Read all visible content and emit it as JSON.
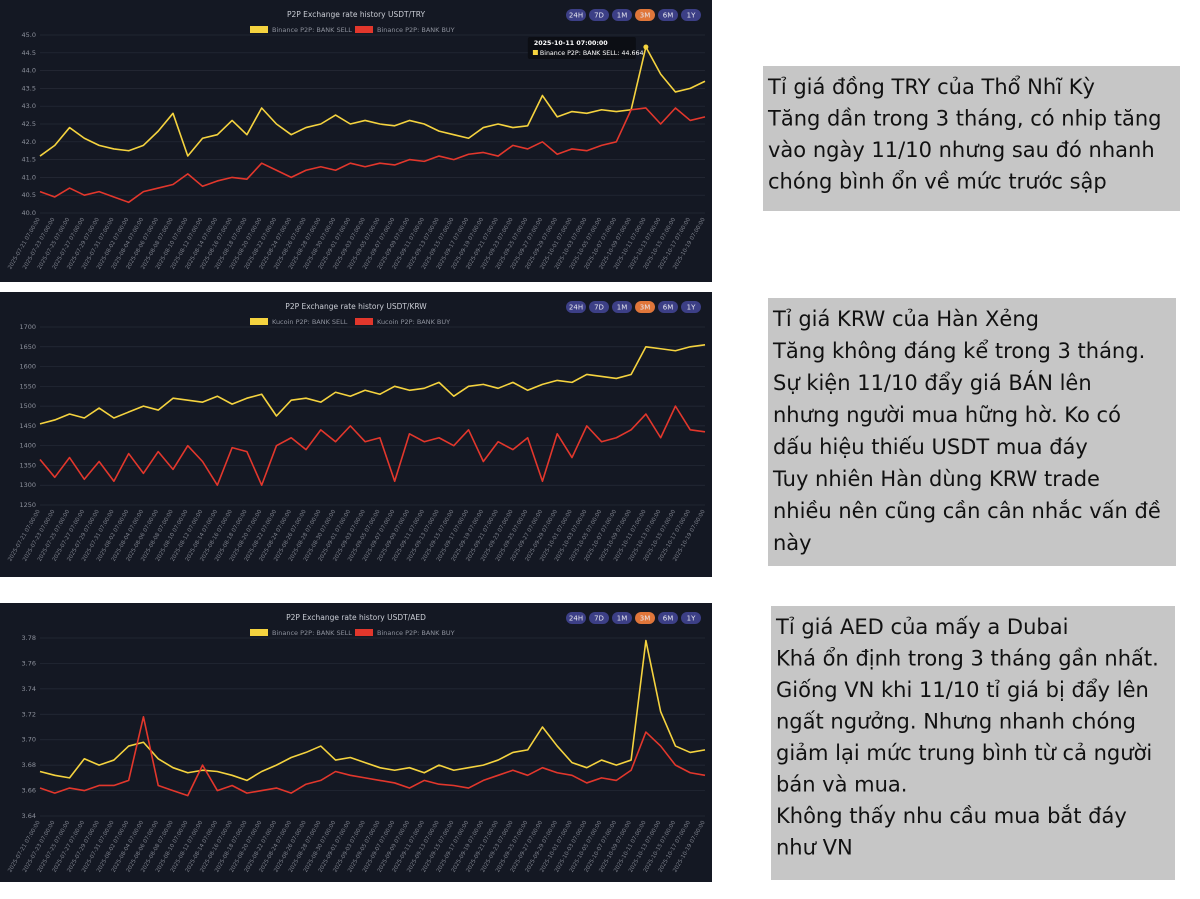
{
  "chart_data": [
    {
      "type": "line",
      "title": "P2P Exchange rate history USDT/TRY",
      "range_buttons": [
        "24H",
        "7D",
        "1M",
        "3M",
        "6M",
        "1Y"
      ],
      "active_range_index": 3,
      "x": [
        "2025-07-21 07:00:00",
        "2025-07-23 07:00:00",
        "2025-07-25 07:00:00",
        "2025-07-27 07:00:00",
        "2025-07-29 07:00:00",
        "2025-07-31 07:00:00",
        "2025-08-02 07:00:00",
        "2025-08-04 07:00:00",
        "2025-08-06 07:00:00",
        "2025-08-08 07:00:00",
        "2025-08-10 07:00:00",
        "2025-08-12 07:00:00",
        "2025-08-14 07:00:00",
        "2025-08-16 07:00:00",
        "2025-08-18 07:00:00",
        "2025-08-20 07:00:00",
        "2025-08-22 07:00:00",
        "2025-08-24 07:00:00",
        "2025-08-26 07:00:00",
        "2025-08-28 07:00:00",
        "2025-08-30 07:00:00",
        "2025-09-01 07:00:00",
        "2025-09-03 07:00:00",
        "2025-09-05 07:00:00",
        "2025-09-07 07:00:00",
        "2025-09-09 07:00:00",
        "2025-09-11 07:00:00",
        "2025-09-13 07:00:00",
        "2025-09-15 07:00:00",
        "2025-09-17 07:00:00",
        "2025-09-19 07:00:00",
        "2025-09-21 07:00:00",
        "2025-09-23 07:00:00",
        "2025-09-25 07:00:00",
        "2025-09-27 07:00:00",
        "2025-09-29 07:00:00",
        "2025-10-01 07:00:00",
        "2025-10-03 07:00:00",
        "2025-10-05 07:00:00",
        "2025-10-07 07:00:00",
        "2025-10-09 07:00:00",
        "2025-10-11 07:00:00",
        "2025-10-13 07:00:00",
        "2025-10-15 07:00:00",
        "2025-10-17 07:00:00",
        "2025-10-19 07:00:00"
      ],
      "series": [
        {
          "name": "Binance P2P: BANK SELL",
          "color": "#f5d33f",
          "values": [
            41.6,
            41.9,
            42.4,
            42.1,
            41.9,
            41.8,
            41.75,
            41.9,
            42.3,
            42.8,
            41.6,
            42.1,
            42.2,
            42.6,
            42.2,
            42.95,
            42.5,
            42.2,
            42.4,
            42.5,
            42.75,
            42.5,
            42.6,
            42.5,
            42.45,
            42.6,
            42.5,
            42.3,
            42.2,
            42.1,
            42.4,
            42.5,
            42.4,
            42.45,
            43.3,
            42.7,
            42.85,
            42.8,
            42.9,
            42.85,
            42.9,
            44.664,
            43.9,
            43.4,
            43.5,
            43.7
          ]
        },
        {
          "name": "Binance P2P: BANK BUY",
          "color": "#e2372c",
          "values": [
            40.6,
            40.45,
            40.7,
            40.5,
            40.6,
            40.45,
            40.3,
            40.6,
            40.7,
            40.8,
            41.1,
            40.75,
            40.9,
            41.0,
            40.95,
            41.4,
            41.2,
            41.0,
            41.2,
            41.3,
            41.2,
            41.4,
            41.3,
            41.4,
            41.35,
            41.5,
            41.45,
            41.6,
            41.5,
            41.65,
            41.7,
            41.6,
            41.9,
            41.8,
            42.0,
            41.65,
            41.8,
            41.75,
            41.9,
            42.0,
            42.9,
            42.95,
            42.5,
            42.95,
            42.6,
            42.7
          ]
        }
      ],
      "ylim": [
        40,
        45
      ],
      "yticks": [
        {
          "value": 40,
          "label": "40.0"
        },
        40.5,
        {
          "value": 41,
          "label": "41.0"
        },
        41.5,
        {
          "value": 42,
          "label": "42.0"
        },
        42.5,
        {
          "value": 43,
          "label": "43.0"
        },
        43.5,
        {
          "value": 44,
          "label": "44.0"
        },
        44.5,
        {
          "value": 45,
          "label": "45.0"
        }
      ],
      "grid": true,
      "tooltip": {
        "series_index": 0,
        "point_index": 41
      }
    },
    {
      "type": "line",
      "title": "P2P Exchange rate history USDT/KRW",
      "range_buttons": [
        "24H",
        "7D",
        "1M",
        "3M",
        "6M",
        "1Y"
      ],
      "active_range_index": 3,
      "x": [
        "2025-07-21 07:00:00",
        "2025-07-23 07:00:00",
        "2025-07-25 07:00:00",
        "2025-07-27 07:00:00",
        "2025-07-29 07:00:00",
        "2025-07-31 07:00:00",
        "2025-08-02 07:00:00",
        "2025-08-04 07:00:00",
        "2025-08-06 07:00:00",
        "2025-08-08 07:00:00",
        "2025-08-10 07:00:00",
        "2025-08-12 07:00:00",
        "2025-08-14 07:00:00",
        "2025-08-16 07:00:00",
        "2025-08-18 07:00:00",
        "2025-08-20 07:00:00",
        "2025-08-22 07:00:00",
        "2025-08-24 07:00:00",
        "2025-08-26 07:00:00",
        "2025-08-28 07:00:00",
        "2025-08-30 07:00:00",
        "2025-09-01 07:00:00",
        "2025-09-03 07:00:00",
        "2025-09-05 07:00:00",
        "2025-09-07 07:00:00",
        "2025-09-09 07:00:00",
        "2025-09-11 07:00:00",
        "2025-09-13 07:00:00",
        "2025-09-15 07:00:00",
        "2025-09-17 07:00:00",
        "2025-09-19 07:00:00",
        "2025-09-21 07:00:00",
        "2025-09-23 07:00:00",
        "2025-09-25 07:00:00",
        "2025-09-27 07:00:00",
        "2025-09-29 07:00:00",
        "2025-10-01 07:00:00",
        "2025-10-03 07:00:00",
        "2025-10-05 07:00:00",
        "2025-10-07 07:00:00",
        "2025-10-09 07:00:00",
        "2025-10-11 07:00:00",
        "2025-10-13 07:00:00",
        "2025-10-15 07:00:00",
        "2025-10-17 07:00:00",
        "2025-10-19 07:00:00"
      ],
      "series": [
        {
          "name": "Kucoin P2P: BANK SELL",
          "color": "#f5d33f",
          "values": [
            1455,
            1465,
            1480,
            1470,
            1495,
            1470,
            1485,
            1500,
            1490,
            1520,
            1515,
            1510,
            1525,
            1505,
            1520,
            1530,
            1475,
            1515,
            1520,
            1510,
            1535,
            1525,
            1540,
            1530,
            1550,
            1540,
            1545,
            1560,
            1525,
            1550,
            1555,
            1545,
            1560,
            1540,
            1555,
            1565,
            1560,
            1580,
            1575,
            1570,
            1580,
            1650,
            1645,
            1640,
            1650,
            1655
          ]
        },
        {
          "name": "Kucoin P2P: BANK BUY",
          "color": "#e2372c",
          "values": [
            1365,
            1320,
            1370,
            1315,
            1360,
            1310,
            1380,
            1330,
            1385,
            1340,
            1400,
            1360,
            1300,
            1395,
            1385,
            1300,
            1400,
            1420,
            1390,
            1440,
            1410,
            1450,
            1410,
            1420,
            1310,
            1430,
            1410,
            1420,
            1400,
            1440,
            1360,
            1410,
            1390,
            1420,
            1310,
            1430,
            1370,
            1450,
            1410,
            1420,
            1440,
            1480,
            1420,
            1500,
            1440,
            1435
          ]
        }
      ],
      "ylim": [
        1250,
        1700
      ],
      "yticks": [
        1250,
        1300,
        1350,
        1400,
        1450,
        1500,
        1550,
        1600,
        1650,
        1700
      ],
      "grid": true
    },
    {
      "type": "line",
      "title": "P2P Exchange rate history USDT/AED",
      "range_buttons": [
        "24H",
        "7D",
        "1M",
        "3M",
        "6M",
        "1Y"
      ],
      "active_range_index": 3,
      "x": [
        "2025-07-21 07:00:00",
        "2025-07-23 07:00:00",
        "2025-07-25 07:00:00",
        "2025-07-27 07:00:00",
        "2025-07-29 07:00:00",
        "2025-07-31 07:00:00",
        "2025-08-02 07:00:00",
        "2025-08-04 07:00:00",
        "2025-08-06 07:00:00",
        "2025-08-08 07:00:00",
        "2025-08-10 07:00:00",
        "2025-08-12 07:00:00",
        "2025-08-14 07:00:00",
        "2025-08-16 07:00:00",
        "2025-08-18 07:00:00",
        "2025-08-20 07:00:00",
        "2025-08-22 07:00:00",
        "2025-08-24 07:00:00",
        "2025-08-26 07:00:00",
        "2025-08-28 07:00:00",
        "2025-08-30 07:00:00",
        "2025-09-01 07:00:00",
        "2025-09-03 07:00:00",
        "2025-09-05 07:00:00",
        "2025-09-07 07:00:00",
        "2025-09-09 07:00:00",
        "2025-09-11 07:00:00",
        "2025-09-13 07:00:00",
        "2025-09-15 07:00:00",
        "2025-09-17 07:00:00",
        "2025-09-19 07:00:00",
        "2025-09-21 07:00:00",
        "2025-09-23 07:00:00",
        "2025-09-25 07:00:00",
        "2025-09-27 07:00:00",
        "2025-09-29 07:00:00",
        "2025-10-01 07:00:00",
        "2025-10-03 07:00:00",
        "2025-10-05 07:00:00",
        "2025-10-07 07:00:00",
        "2025-10-09 07:00:00",
        "2025-10-11 07:00:00",
        "2025-10-13 07:00:00",
        "2025-10-15 07:00:00",
        "2025-10-17 07:00:00",
        "2025-10-19 07:00:00"
      ],
      "series": [
        {
          "name": "Binance P2P: BANK SELL",
          "color": "#f5d33f",
          "values": [
            3.675,
            3.672,
            3.67,
            3.685,
            3.68,
            3.684,
            3.695,
            3.698,
            3.685,
            3.678,
            3.674,
            3.676,
            3.675,
            3.672,
            3.668,
            3.675,
            3.68,
            3.686,
            3.69,
            3.695,
            3.684,
            3.686,
            3.682,
            3.678,
            3.676,
            3.678,
            3.674,
            3.68,
            3.676,
            3.678,
            3.68,
            3.684,
            3.69,
            3.692,
            3.71,
            3.695,
            3.682,
            3.678,
            3.684,
            3.68,
            3.684,
            3.778,
            3.722,
            3.695,
            3.69,
            3.692
          ]
        },
        {
          "name": "Binance P2P: BANK BUY",
          "color": "#e2372c",
          "values": [
            3.662,
            3.658,
            3.662,
            3.66,
            3.664,
            3.664,
            3.668,
            3.718,
            3.664,
            3.66,
            3.656,
            3.68,
            3.66,
            3.664,
            3.658,
            3.66,
            3.662,
            3.658,
            3.665,
            3.668,
            3.675,
            3.672,
            3.67,
            3.668,
            3.666,
            3.662,
            3.668,
            3.665,
            3.664,
            3.662,
            3.668,
            3.672,
            3.676,
            3.672,
            3.678,
            3.674,
            3.672,
            3.666,
            3.67,
            3.668,
            3.676,
            3.706,
            3.695,
            3.68,
            3.674,
            3.672
          ]
        }
      ],
      "ylim": [
        3.64,
        3.78
      ],
      "yticks": [
        3.64,
        3.66,
        3.68,
        {
          "value": 3.7,
          "label": "3.70"
        },
        3.72,
        3.74,
        3.76,
        3.78
      ],
      "grid": true
    }
  ],
  "notes": [
    [
      "Tỉ giá đồng TRY của Thổ Nhĩ Kỳ",
      "Tăng dần trong 3 tháng, có nhip tăng",
      "vào ngày 11/10 nhưng sau đó nhanh",
      "chóng bình ổn về mức trước sập"
    ],
    [
      "Tỉ giá KRW của Hàn Xẻng",
      "Tăng không đáng kể trong 3 tháng.",
      "Sự kiện 11/10 đẩy giá BÁN lên",
      "nhưng người mua hững hờ. Ko có",
      "dấu hiệu thiếu USDT mua đáy",
      "Tuy nhiên Hàn dùng KRW trade",
      "nhiều nên cũng cần cân nhắc vấn đề",
      "này"
    ],
    [
      "Tỉ giá AED của mấy a Dubai",
      "Khá ổn định trong 3 tháng gần nhất.",
      "Giống VN khi 11/10 tỉ giá bị đẩy lên",
      "ngất ngưởng. Nhưng nhanh chóng",
      "giảm lại mức trung bình từ cả người",
      "bán và mua.",
      "Không thấy nhu cầu mua bắt đáy",
      "như VN"
    ]
  ]
}
